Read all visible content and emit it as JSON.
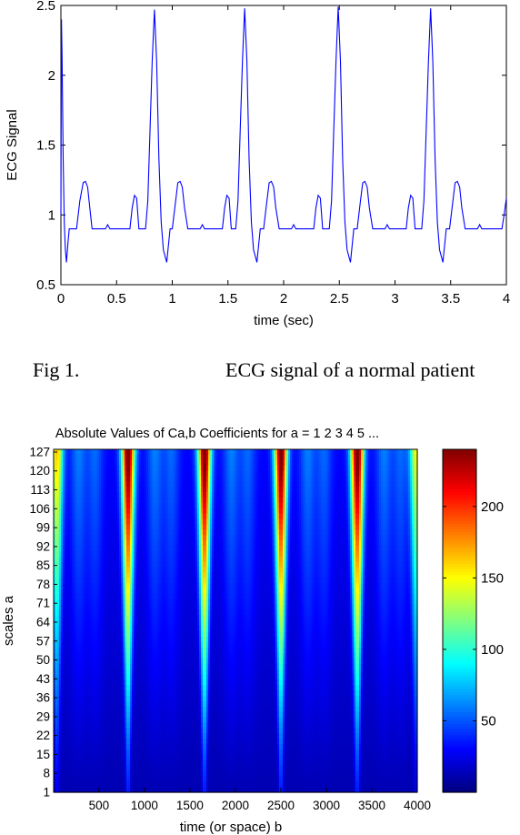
{
  "figure_caption": {
    "number": "Fig 1.",
    "text": "ECG signal of a normal patient"
  },
  "chart_data": [
    {
      "type": "line",
      "title": "",
      "xlabel": "time (sec)",
      "ylabel": "ECG Signal",
      "xlim": [
        0,
        4
      ],
      "ylim": [
        0.5,
        2.5
      ],
      "xticks": [
        "0",
        "0.5",
        "1",
        "1.5",
        "2",
        "2.5",
        "3",
        "3.5",
        "4"
      ],
      "yticks": [
        "0.5",
        "1",
        "1.5",
        "2",
        "2.5"
      ],
      "grid": false,
      "line_color": "#0000ff",
      "series": [
        {
          "x": [
            0,
            0.005,
            0.01,
            0.02,
            0.03,
            0.04,
            0.05,
            0.065,
            0.075,
            0.09,
            0.11,
            0.14,
            0.17,
            0.2,
            0.22,
            0.24,
            0.26,
            0.28,
            0.31,
            0.35,
            0.4,
            0.42,
            0.44,
            0.47,
            0.55,
            0.62,
            0.64,
            0.66,
            0.68,
            0.7,
            0.72,
            0.74,
            0.76,
            0.78,
            0.8,
            0.82,
            0.84,
            0.86,
            0.88,
            0.9,
            0.92,
            0.95,
            0.98,
            1.0,
            1.03,
            1.05,
            1.07,
            1.09,
            1.11,
            1.14,
            1.2,
            1.25,
            1.27,
            1.29,
            1.32,
            1.42,
            1.45,
            1.47,
            1.49,
            1.51,
            1.53,
            1.55,
            1.57,
            1.59,
            1.61,
            1.63,
            1.65,
            1.67,
            1.69,
            1.71,
            1.73,
            1.76,
            1.79,
            1.82,
            1.85,
            1.87,
            1.89,
            1.91,
            1.93,
            1.96,
            2.02,
            2.07,
            2.09,
            2.11,
            2.14,
            2.27,
            2.29,
            2.31,
            2.33,
            2.35,
            2.37,
            2.39,
            2.41,
            2.43,
            2.45,
            2.47,
            2.49,
            2.51,
            2.53,
            2.55,
            2.57,
            2.6,
            2.63,
            2.66,
            2.69,
            2.71,
            2.73,
            2.75,
            2.77,
            2.8,
            2.86,
            2.91,
            2.93,
            2.95,
            2.98,
            3.1,
            3.12,
            3.14,
            3.16,
            3.18,
            3.2,
            3.22,
            3.24,
            3.26,
            3.28,
            3.3,
            3.32,
            3.34,
            3.36,
            3.38,
            3.4,
            3.43,
            3.46,
            3.49,
            3.52,
            3.54,
            3.56,
            3.58,
            3.6,
            3.63,
            3.69,
            3.74,
            3.76,
            3.78,
            3.81,
            3.94,
            3.96,
            3.98,
            4.0
          ],
          "y": [
            1.0,
            2.4,
            2.17,
            1.4,
            0.95,
            0.75,
            0.66,
            0.82,
            0.9,
            0.9,
            0.9,
            0.9,
            1.1,
            1.23,
            1.24,
            1.2,
            1.05,
            0.9,
            0.9,
            0.9,
            0.9,
            0.93,
            0.9,
            0.9,
            0.9,
            0.9,
            1.05,
            1.14,
            1.12,
            0.9,
            0.9,
            0.9,
            0.9,
            1.1,
            1.6,
            2.1,
            2.47,
            2.1,
            1.4,
            0.95,
            0.75,
            0.66,
            0.9,
            0.9,
            1.1,
            1.23,
            1.24,
            1.2,
            1.05,
            0.9,
            0.9,
            0.9,
            0.93,
            0.9,
            0.9,
            0.9,
            0.9,
            1.05,
            1.14,
            1.12,
            0.9,
            0.9,
            0.9,
            1.1,
            1.6,
            2.1,
            2.48,
            2.1,
            1.4,
            0.95,
            0.75,
            0.66,
            0.9,
            0.9,
            1.1,
            1.23,
            1.24,
            1.2,
            1.05,
            0.9,
            0.9,
            0.9,
            0.93,
            0.9,
            0.9,
            0.9,
            1.05,
            1.14,
            1.12,
            0.9,
            0.9,
            0.9,
            0.9,
            1.1,
            1.6,
            2.1,
            2.49,
            2.1,
            1.4,
            0.95,
            0.75,
            0.66,
            0.9,
            0.9,
            1.1,
            1.23,
            1.24,
            1.2,
            1.05,
            0.9,
            0.9,
            0.9,
            0.93,
            0.9,
            0.9,
            0.9,
            1.05,
            1.14,
            1.12,
            0.9,
            0.9,
            0.9,
            0.9,
            1.1,
            1.6,
            2.1,
            2.48,
            2.1,
            1.4,
            0.95,
            0.75,
            0.66,
            0.9,
            0.9,
            1.1,
            1.23,
            1.24,
            1.2,
            1.05,
            0.9,
            0.9,
            0.9,
            0.93,
            0.9,
            0.9,
            0.9,
            0.9,
            1.0,
            1.12
          ]
        }
      ]
    },
    {
      "type": "heatmap",
      "title": "Absolute Values of Ca,b Coefficients for a =   1 2 3 4 5 ...",
      "xlabel": "time (or space) b",
      "ylabel": "scales a",
      "xlim": [
        1,
        4000
      ],
      "ylim": [
        1,
        128
      ],
      "xticks": [
        "500",
        "1000",
        "1500",
        "2000",
        "2500",
        "3000",
        "3500",
        "4000"
      ],
      "yticks": [
        "1",
        "8",
        "15",
        "22",
        "29",
        "36",
        "43",
        "50",
        "57",
        "64",
        "71",
        "78",
        "85",
        "92",
        "99",
        "106",
        "113",
        "120",
        "127"
      ],
      "colormap": "jet",
      "colorbar": {
        "range": [
          0,
          240
        ],
        "ticks": [
          "50",
          "100",
          "150",
          "200"
        ]
      },
      "ridges": [
        {
          "center": 35,
          "peak": 135
        },
        {
          "center": 820,
          "peak": 230
        },
        {
          "center": 1660,
          "peak": 230
        },
        {
          "center": 2500,
          "peak": 230
        },
        {
          "center": 3340,
          "peak": 230
        },
        {
          "center": 3990,
          "peak": 120
        }
      ]
    }
  ]
}
